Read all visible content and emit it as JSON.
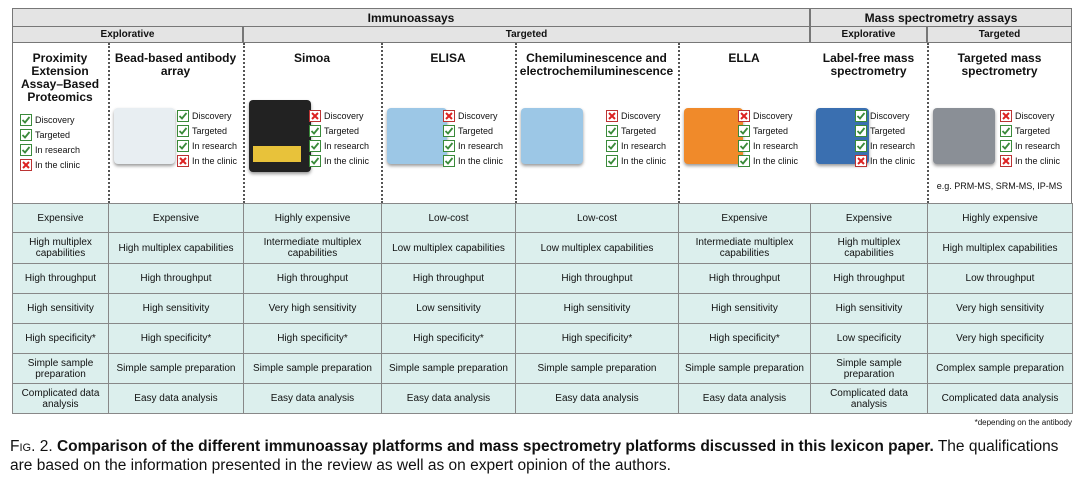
{
  "header": {
    "groups": [
      "Immunoassays",
      "Mass spectrometry assays"
    ],
    "subgroups": [
      "Explorative",
      "Targeted",
      "Explorative",
      "Targeted"
    ]
  },
  "platforms": [
    {
      "title": "Proximity Extension Assay–Based Proteomics",
      "checks": [
        {
          "label": "Discovery",
          "status": "check"
        },
        {
          "label": "Targeted",
          "status": "check"
        },
        {
          "label": "In research",
          "status": "check"
        },
        {
          "label": "In the clinic",
          "status": "cross"
        }
      ]
    },
    {
      "title": "Bead-based antibody array",
      "checks": [
        {
          "label": "Discovery",
          "status": "check"
        },
        {
          "label": "Targeted",
          "status": "check"
        },
        {
          "label": "In research",
          "status": "check"
        },
        {
          "label": "In the clinic",
          "status": "cross"
        }
      ]
    },
    {
      "title": "Simoa",
      "checks": [
        {
          "label": "Discovery",
          "status": "cross"
        },
        {
          "label": "Targeted",
          "status": "check"
        },
        {
          "label": "In research",
          "status": "check"
        },
        {
          "label": "In the clinic",
          "status": "check"
        }
      ]
    },
    {
      "title": "ELISA",
      "checks": [
        {
          "label": "Discovery",
          "status": "cross"
        },
        {
          "label": "Targeted",
          "status": "check"
        },
        {
          "label": "In research",
          "status": "check"
        },
        {
          "label": "In the clinic",
          "status": "check"
        }
      ]
    },
    {
      "title": "Chemiluminescence and electrochemiluminescence",
      "checks": [
        {
          "label": "Discovery",
          "status": "cross"
        },
        {
          "label": "Targeted",
          "status": "check"
        },
        {
          "label": "In research",
          "status": "check"
        },
        {
          "label": "In the clinic",
          "status": "check"
        }
      ]
    },
    {
      "title": "ELLA",
      "checks": [
        {
          "label": "Discovery",
          "status": "cross"
        },
        {
          "label": "Targeted",
          "status": "check"
        },
        {
          "label": "In research",
          "status": "check"
        },
        {
          "label": "In the clinic",
          "status": "check"
        }
      ]
    },
    {
      "title": "Label-free mass spectrometry",
      "checks": [
        {
          "label": "Discovery",
          "status": "check"
        },
        {
          "label": "Targeted",
          "status": "check"
        },
        {
          "label": "In research",
          "status": "check"
        },
        {
          "label": "In the clinic",
          "status": "cross"
        }
      ]
    },
    {
      "title": "Targeted mass spectrometry",
      "checks": [
        {
          "label": "Discovery",
          "status": "cross"
        },
        {
          "label": "Targeted",
          "status": "check"
        },
        {
          "label": "In research",
          "status": "check"
        },
        {
          "label": "In the clinic",
          "status": "cross"
        }
      ],
      "note": "e.g. PRM-MS, SRM-MS, IP-MS"
    }
  ],
  "table": {
    "rows": [
      [
        "Expensive",
        "Expensive",
        "Highly expensive",
        "Low-cost",
        "Low-cost",
        "Expensive",
        "Expensive",
        "Highly expensive"
      ],
      [
        "High multiplex capabilities",
        "High multiplex capabilities",
        "Intermediate multiplex capabilities",
        "Low multiplex capabilities",
        "Low multiplex capabilities",
        "Intermediate multiplex capabilities",
        "High multiplex capabilities",
        "High multiplex capabilities"
      ],
      [
        "High throughput",
        "High throughput",
        "High throughput",
        "High throughput",
        "High throughput",
        "High throughput",
        "High throughput",
        "Low throughput"
      ],
      [
        "High sensitivity",
        "High sensitivity",
        "Very high sensitivity",
        "Low sensitivity",
        "High sensitivity",
        "High sensitivity",
        "High sensitivity",
        "Very high sensitivity"
      ],
      [
        "High specificity*",
        "High specificity*",
        "High specificity*",
        "High specificity*",
        "High specificity*",
        "High specificity*",
        "Low specificity",
        "Very high specificity"
      ],
      [
        "Simple sample preparation",
        "Simple sample preparation",
        "Simple sample preparation",
        "Simple sample preparation",
        "Simple sample preparation",
        "Simple sample preparation",
        "Simple sample preparation",
        "Complex sample preparation"
      ],
      [
        "Complicated data analysis",
        "Easy data analysis",
        "Easy data analysis",
        "Easy data analysis",
        "Easy data analysis",
        "Easy data analysis",
        "Complicated data analysis",
        "Complicated data analysis"
      ]
    ]
  },
  "footnote": "*depending on the antibody",
  "caption": {
    "label": "Fig. 2.",
    "bold": "Comparison of the different immunoassay platforms and mass spectrometry platforms discussed in this lexicon paper.",
    "text": "The qualifications are based on the information presented in the review as well as on expert opinion of the authors."
  }
}
